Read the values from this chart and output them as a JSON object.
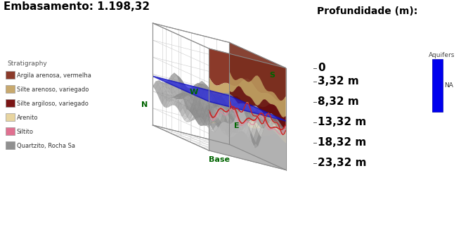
{
  "title": "Embasamento: 1.198,32",
  "title_fontsize": 11,
  "title_fontweight": "bold",
  "bg_color": "#ffffff",
  "legend_title": "Stratigraphy",
  "legend_items": [
    {
      "label": "Argila arenosa, vermelha",
      "color": "#8B3A2A"
    },
    {
      "label": "Silte arenoso, variegado",
      "color": "#C8A96E"
    },
    {
      "label": "Silte argiloso, variegado",
      "color": "#7A1515"
    },
    {
      "label": "Arenito",
      "color": "#E8D5A0"
    },
    {
      "label": "Siltito",
      "color": "#E07090"
    },
    {
      "label": "Quartzito, Rocha Sa",
      "color": "#909090"
    }
  ],
  "depth_label": "Profundidade (m):",
  "depth_values": [
    "0",
    "3,32 m",
    "8,32 m",
    "13,32 m",
    "18,32 m",
    "23,32 m"
  ],
  "depth_label_fontsize": 10,
  "depth_value_fontsize": 11,
  "aquifer_label": "Aquifers",
  "aquifer_na_label": "NA",
  "aquifer_color": "#0000EE",
  "axis_label_color": "#006400",
  "grid_line_color": "#cccccc",
  "edge_color": "#aaaaaa",
  "blue_plane_color": "#2222DD",
  "red_line_color": "#CC2222",
  "pink_line_color": "#E088A0",
  "layer1_color": "#8B3A2A",
  "layer2_color": "#C8A96E",
  "layer3_color": "#7A1515",
  "layer4_color": "#E8D5A0",
  "rock_color": "#B0B0B0",
  "W_label": "W",
  "S_label": "S",
  "N_label": "N",
  "E_label": "E",
  "Base_label": "Base"
}
